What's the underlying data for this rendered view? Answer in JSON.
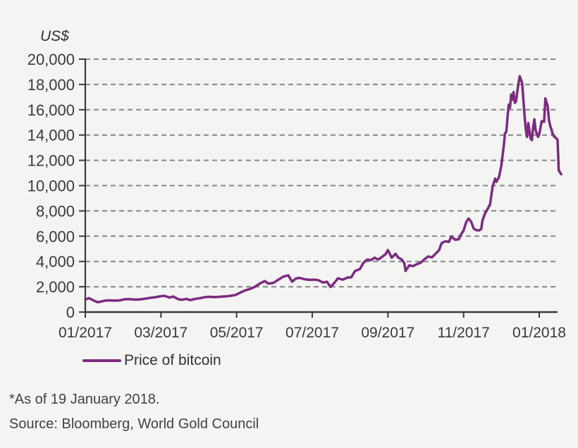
{
  "page": {
    "background": "#f4f4f3"
  },
  "chart": {
    "unit_label": "US$",
    "legend_label": "Price of bitcoin",
    "footnote": "*As of 19 January 2018.",
    "source": "Source: Bloomberg, World Gold Council",
    "line_color": "#7c2b80",
    "grid_color": "#868686",
    "axis_color": "#3a3a3a"
  },
  "chart_data": {
    "type": "line",
    "title": "",
    "ylabel": "US$",
    "xlabel": "",
    "ylim": [
      0,
      20000
    ],
    "grid": "horizontal-dashed",
    "legend_position": "bottom-left",
    "yticks": [
      {
        "value": 20000,
        "label": "20,000"
      },
      {
        "value": 18000,
        "label": "18,000"
      },
      {
        "value": 16000,
        "label": "16,000"
      },
      {
        "value": 14000,
        "label": "14,000"
      },
      {
        "value": 12000,
        "label": "12,000"
      },
      {
        "value": 10000,
        "label": "10,000"
      },
      {
        "value": 8000,
        "label": "8,000"
      },
      {
        "value": 6000,
        "label": "6,000"
      },
      {
        "value": 4000,
        "label": "4,000"
      },
      {
        "value": 2000,
        "label": "2,000"
      },
      {
        "value": 0,
        "label": "0"
      }
    ],
    "xticks": [
      {
        "month_index": 0,
        "label": "01/2017"
      },
      {
        "month_index": 2,
        "label": "03/2017"
      },
      {
        "month_index": 4,
        "label": "05/2017"
      },
      {
        "month_index": 6,
        "label": "07/2017"
      },
      {
        "month_index": 8,
        "label": "09/2017"
      },
      {
        "month_index": 10,
        "label": "11/2017"
      },
      {
        "month_index": 12,
        "label": "01/2018"
      }
    ],
    "series": [
      {
        "name": "Price of bitcoin",
        "color": "#7c2b80",
        "points": [
          [
            "2017-01-01",
            1000
          ],
          [
            "2017-01-04",
            1100
          ],
          [
            "2017-01-08",
            910
          ],
          [
            "2017-01-11",
            780
          ],
          [
            "2017-01-14",
            830
          ],
          [
            "2017-01-17",
            905
          ],
          [
            "2017-01-21",
            925
          ],
          [
            "2017-01-25",
            900
          ],
          [
            "2017-01-29",
            920
          ],
          [
            "2017-02-02",
            1010
          ],
          [
            "2017-02-06",
            1025
          ],
          [
            "2017-02-09",
            985
          ],
          [
            "2017-02-13",
            1000
          ],
          [
            "2017-02-17",
            1055
          ],
          [
            "2017-02-21",
            1120
          ],
          [
            "2017-02-25",
            1175
          ],
          [
            "2017-03-01",
            1255
          ],
          [
            "2017-03-04",
            1280
          ],
          [
            "2017-03-08",
            1150
          ],
          [
            "2017-03-11",
            1230
          ],
          [
            "2017-03-15",
            1025
          ],
          [
            "2017-03-18",
            970
          ],
          [
            "2017-03-22",
            1040
          ],
          [
            "2017-03-25",
            940
          ],
          [
            "2017-03-29",
            1040
          ],
          [
            "2017-04-02",
            1100
          ],
          [
            "2017-04-06",
            1180
          ],
          [
            "2017-04-10",
            1205
          ],
          [
            "2017-04-14",
            1175
          ],
          [
            "2017-04-18",
            1210
          ],
          [
            "2017-04-22",
            1245
          ],
          [
            "2017-04-26",
            1280
          ],
          [
            "2017-04-30",
            1350
          ],
          [
            "2017-05-04",
            1540
          ],
          [
            "2017-05-08",
            1710
          ],
          [
            "2017-05-12",
            1830
          ],
          [
            "2017-05-16",
            2000
          ],
          [
            "2017-05-20",
            2250
          ],
          [
            "2017-05-24",
            2450
          ],
          [
            "2017-05-27",
            2250
          ],
          [
            "2017-05-31",
            2300
          ],
          [
            "2017-06-04",
            2550
          ],
          [
            "2017-06-08",
            2800
          ],
          [
            "2017-06-12",
            2900
          ],
          [
            "2017-06-15",
            2400
          ],
          [
            "2017-06-18",
            2650
          ],
          [
            "2017-06-21",
            2700
          ],
          [
            "2017-06-25",
            2590
          ],
          [
            "2017-06-29",
            2550
          ],
          [
            "2017-07-03",
            2560
          ],
          [
            "2017-07-06",
            2520
          ],
          [
            "2017-07-10",
            2330
          ],
          [
            "2017-07-13",
            2400
          ],
          [
            "2017-07-16",
            1975
          ],
          [
            "2017-07-19",
            2300
          ],
          [
            "2017-07-22",
            2670
          ],
          [
            "2017-07-26",
            2560
          ],
          [
            "2017-07-30",
            2730
          ],
          [
            "2017-08-02",
            2750
          ],
          [
            "2017-08-05",
            3250
          ],
          [
            "2017-08-09",
            3400
          ],
          [
            "2017-08-12",
            3900
          ],
          [
            "2017-08-15",
            4150
          ],
          [
            "2017-08-18",
            4100
          ],
          [
            "2017-08-21",
            4300
          ],
          [
            "2017-08-24",
            4150
          ],
          [
            "2017-08-27",
            4350
          ],
          [
            "2017-08-30",
            4570
          ],
          [
            "2017-09-01",
            4900
          ],
          [
            "2017-09-04",
            4300
          ],
          [
            "2017-09-07",
            4600
          ],
          [
            "2017-09-09",
            4330
          ],
          [
            "2017-09-12",
            4150
          ],
          [
            "2017-09-14",
            3870
          ],
          [
            "2017-09-15",
            3250
          ],
          [
            "2017-09-18",
            3700
          ],
          [
            "2017-09-21",
            3630
          ],
          [
            "2017-09-24",
            3790
          ],
          [
            "2017-09-27",
            3900
          ],
          [
            "2017-09-30",
            4170
          ],
          [
            "2017-10-03",
            4400
          ],
          [
            "2017-10-06",
            4320
          ],
          [
            "2017-10-09",
            4610
          ],
          [
            "2017-10-12",
            4900
          ],
          [
            "2017-10-14",
            5450
          ],
          [
            "2017-10-17",
            5600
          ],
          [
            "2017-10-20",
            5550
          ],
          [
            "2017-10-22",
            5980
          ],
          [
            "2017-10-25",
            5720
          ],
          [
            "2017-10-28",
            5750
          ],
          [
            "2017-10-30",
            6150
          ],
          [
            "2017-11-01",
            6450
          ],
          [
            "2017-11-03",
            7100
          ],
          [
            "2017-11-05",
            7400
          ],
          [
            "2017-11-07",
            7150
          ],
          [
            "2017-11-09",
            6600
          ],
          [
            "2017-11-11",
            6480
          ],
          [
            "2017-11-13",
            6450
          ],
          [
            "2017-11-15",
            6550
          ],
          [
            "2017-11-16",
            7250
          ],
          [
            "2017-11-18",
            7800
          ],
          [
            "2017-11-20",
            8150
          ],
          [
            "2017-11-22",
            8500
          ],
          [
            "2017-11-24",
            9900
          ],
          [
            "2017-11-26",
            10550
          ],
          [
            "2017-11-27",
            10300
          ],
          [
            "2017-11-29",
            10650
          ],
          [
            "2017-12-01",
            11600
          ],
          [
            "2017-12-03",
            13200
          ],
          [
            "2017-12-04",
            14150
          ],
          [
            "2017-12-05",
            14250
          ],
          [
            "2017-12-06",
            15400
          ],
          [
            "2017-12-07",
            16400
          ],
          [
            "2017-12-08",
            16150
          ],
          [
            "2017-12-09",
            17200
          ],
          [
            "2017-12-10",
            16800
          ],
          [
            "2017-12-11",
            17400
          ],
          [
            "2017-12-12",
            16550
          ],
          [
            "2017-12-13",
            16650
          ],
          [
            "2017-12-14",
            17400
          ],
          [
            "2017-12-15",
            18100
          ],
          [
            "2017-12-16",
            18650
          ],
          [
            "2017-12-18",
            18100
          ],
          [
            "2017-12-19",
            16800
          ],
          [
            "2017-12-20",
            15500
          ],
          [
            "2017-12-21",
            14400
          ],
          [
            "2017-12-22",
            13850
          ],
          [
            "2017-12-23",
            14950
          ],
          [
            "2017-12-25",
            13700
          ],
          [
            "2017-12-26",
            13600
          ],
          [
            "2017-12-27",
            14600
          ],
          [
            "2017-12-28",
            15250
          ],
          [
            "2017-12-29",
            14400
          ],
          [
            "2017-12-30",
            14100
          ],
          [
            "2017-12-31",
            13850
          ],
          [
            "2018-01-01",
            14050
          ],
          [
            "2018-01-03",
            15100
          ],
          [
            "2018-01-05",
            15050
          ],
          [
            "2018-01-06",
            16900
          ],
          [
            "2018-01-08",
            16250
          ],
          [
            "2018-01-09",
            15200
          ],
          [
            "2018-01-10",
            14700
          ],
          [
            "2018-01-11",
            14450
          ],
          [
            "2018-01-12",
            14100
          ],
          [
            "2018-01-13",
            13900
          ],
          [
            "2018-01-15",
            13750
          ],
          [
            "2018-01-16",
            13600
          ],
          [
            "2018-01-17",
            11200
          ],
          [
            "2018-01-19",
            10900
          ]
        ]
      }
    ]
  }
}
